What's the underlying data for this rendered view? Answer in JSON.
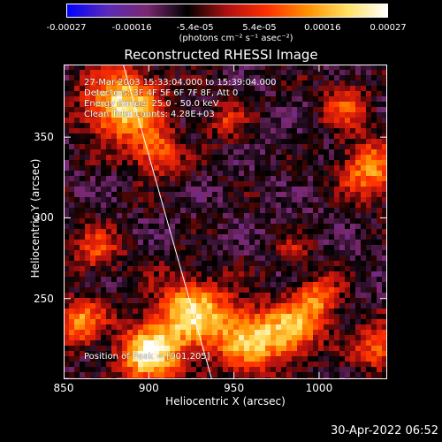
{
  "colorbar": {
    "ticks": [
      "-0.00027",
      "-0.00016",
      "-5.4e-05",
      "5.4e-05",
      "0.00016",
      "0.00027"
    ],
    "tick_values": [
      -0.00027,
      -0.00016,
      -5.4e-05,
      5.4e-05,
      0.00016,
      0.00027
    ],
    "units": "(photons cm⁻² s⁻¹ asec⁻²)",
    "colors": [
      "#0000ff",
      "#5a2ab8",
      "#7a2870",
      "#000000",
      "#b01010",
      "#ff3000",
      "#ff9000",
      "#ffe060",
      "#ffffff"
    ]
  },
  "chart_data": {
    "type": "heatmap",
    "title": "Reconstructed RHESSI Image",
    "xlabel": "Heliocentric X (arcsec)",
    "ylabel": "Heliocentric Y (arcsec)",
    "xlim": [
      850,
      1040
    ],
    "ylim": [
      200,
      395
    ],
    "xticks": [
      "850",
      "900",
      "950",
      "1000"
    ],
    "xtick_values": [
      850,
      900,
      950,
      1000
    ],
    "yticks": [
      "250",
      "300",
      "350"
    ],
    "ytick_values": [
      250,
      300,
      350
    ],
    "value_range": [
      -0.00027,
      0.00027
    ],
    "limb_line": [
      [
        885,
        395
      ],
      [
        937,
        200
      ]
    ],
    "annotations": [
      "27-Mar-2003 15:33:04.000 to 15:39:04.000",
      "Detectors: 3F 4F 5F 6F 7F 8F, Att 0",
      "Energy Range: 25.0 - 50.0 keV",
      "Clean     Total counts: 4.28E+03"
    ],
    "peak_label": "Position of Peak = [901,205]"
  },
  "footer": {
    "timestamp": "30-Apr-2022 06:52"
  }
}
